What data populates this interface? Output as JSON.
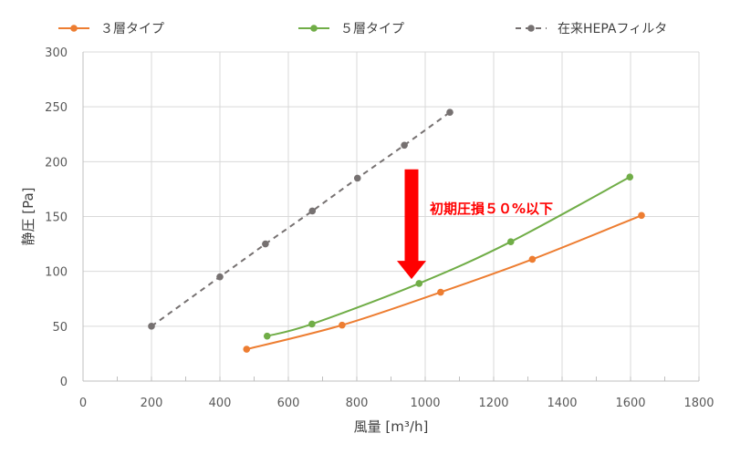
{
  "chart_data": {
    "type": "line",
    "xlabel": "風量 [m³/h]",
    "ylabel": "静圧 [Pa]",
    "xlim": [
      0,
      1800
    ],
    "ylim": [
      0,
      300
    ],
    "xticks": [
      0,
      200,
      400,
      600,
      800,
      1000,
      1200,
      1400,
      1600,
      1800
    ],
    "yticks": [
      0,
      50,
      100,
      150,
      200,
      250,
      300
    ],
    "grid": "vertical gridlines + horizontal gridlines",
    "legend": "top",
    "series": [
      {
        "name": "３層タイプ",
        "color": "#ed7d31",
        "line_style": "solid",
        "smooth": true,
        "x": [
          478,
          757,
          1045,
          1313,
          1632
        ],
        "y": [
          29,
          51,
          81,
          111,
          151
        ]
      },
      {
        "name": "５層タイプ",
        "color": "#70ad47",
        "line_style": "solid",
        "smooth": true,
        "x": [
          538,
          669,
          982,
          1250,
          1598
        ],
        "y": [
          41,
          52,
          89,
          127,
          186
        ]
      },
      {
        "name": "在来HEPAフィルタ",
        "color": "#767171",
        "line_style": "dashed",
        "smooth": false,
        "x": [
          200,
          400,
          533,
          670,
          802,
          939,
          1072
        ],
        "y": [
          50,
          95,
          125,
          155,
          185,
          215,
          245
        ]
      }
    ],
    "annotation": {
      "text": "初期圧損５０%以下",
      "color": "#ff0000",
      "arrow": {
        "direction": "down",
        "x": 960,
        "y_from": 193,
        "y_to": 93
      }
    }
  }
}
